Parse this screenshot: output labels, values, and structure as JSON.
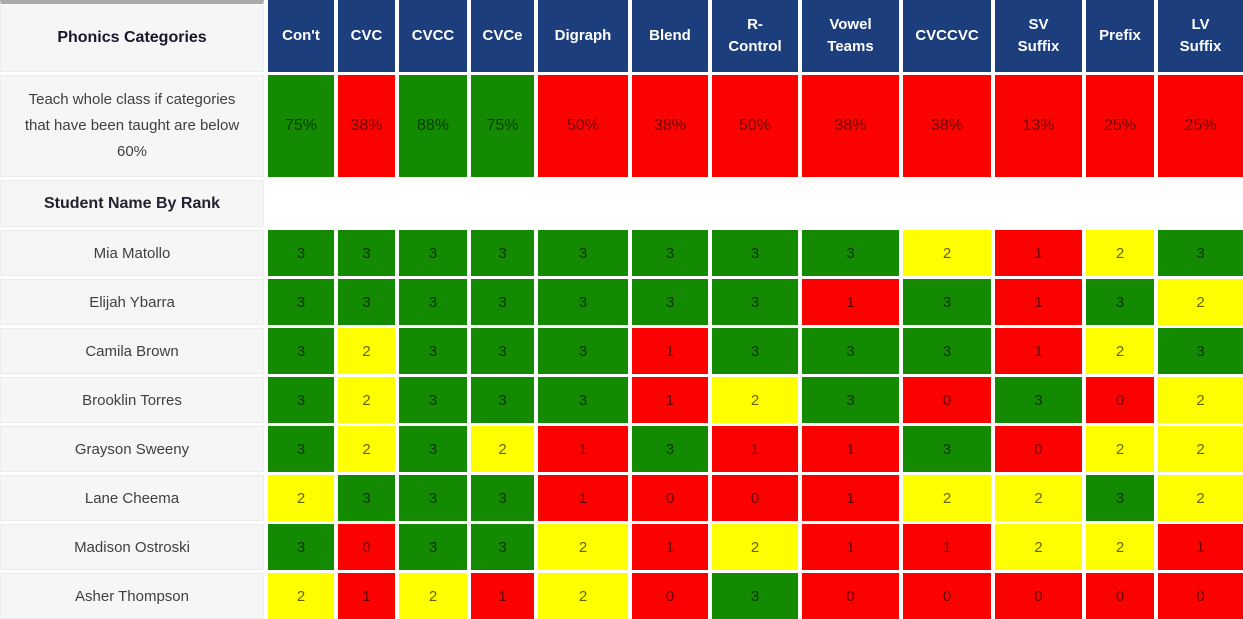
{
  "title": {
    "corner_label": "Phonics Categories",
    "summary_label": "Teach whole class if categories that have been taught are below 60%",
    "rank_label": "Student Name By Rank"
  },
  "colors": {
    "header_navy": "#1d3e7c",
    "green": "#138a02",
    "yellow": "#ffff00",
    "red": "#fb0200",
    "left_column_bg": "#f6f6f7",
    "top_strip_gray": "#a9a9a9",
    "cell_text_dark": "#3f3f3f"
  },
  "chart_data": {
    "type": "heatmap",
    "title": "Phonics Categories",
    "columns": [
      "Con't",
      "CVC",
      "CVCC",
      "CVCe",
      "Digraph",
      "Blend",
      "R-Control",
      "Vowel Teams",
      "CVCCVC",
      "SV Suffix",
      "Prefix",
      "LV Suffix"
    ],
    "class_percentages": [
      {
        "pct": "75%",
        "color": "green"
      },
      {
        "pct": "38%",
        "color": "red"
      },
      {
        "pct": "88%",
        "color": "green"
      },
      {
        "pct": "75%",
        "color": "green"
      },
      {
        "pct": "50%",
        "color": "red"
      },
      {
        "pct": "38%",
        "color": "red"
      },
      {
        "pct": "50%",
        "color": "red"
      },
      {
        "pct": "38%",
        "color": "red"
      },
      {
        "pct": "38%",
        "color": "red"
      },
      {
        "pct": "13%",
        "color": "red"
      },
      {
        "pct": "25%",
        "color": "red"
      },
      {
        "pct": "25%",
        "color": "red"
      }
    ],
    "score_color_map": {
      "3": "green",
      "2": "yellow",
      "1": "red",
      "0": "red"
    },
    "percentage_rule": "green if >= 60%, red if below 60%",
    "students": [
      {
        "name": "Mia Matollo",
        "scores": [
          3,
          3,
          3,
          3,
          3,
          3,
          3,
          3,
          2,
          1,
          2,
          3
        ]
      },
      {
        "name": "Elijah Ybarra",
        "scores": [
          3,
          3,
          3,
          3,
          3,
          3,
          3,
          1,
          3,
          1,
          3,
          2
        ]
      },
      {
        "name": "Camila Brown",
        "scores": [
          3,
          2,
          3,
          3,
          3,
          1,
          3,
          3,
          3,
          1,
          2,
          3
        ]
      },
      {
        "name": "Brooklin Torres",
        "scores": [
          3,
          2,
          3,
          3,
          3,
          1,
          2,
          3,
          0,
          3,
          0,
          2
        ]
      },
      {
        "name": "Grayson Sweeny",
        "scores": [
          3,
          2,
          3,
          2,
          1,
          3,
          1,
          1,
          3,
          0,
          2,
          2
        ]
      },
      {
        "name": "Lane Cheema",
        "scores": [
          2,
          3,
          3,
          3,
          1,
          0,
          0,
          1,
          2,
          2,
          3,
          2
        ]
      },
      {
        "name": "Madison Ostroski",
        "scores": [
          3,
          0,
          3,
          3,
          2,
          1,
          2,
          1,
          1,
          2,
          2,
          1
        ]
      },
      {
        "name": "Asher Thompson",
        "scores": [
          2,
          1,
          2,
          1,
          2,
          0,
          3,
          0,
          0,
          0,
          0,
          0
        ]
      }
    ]
  }
}
